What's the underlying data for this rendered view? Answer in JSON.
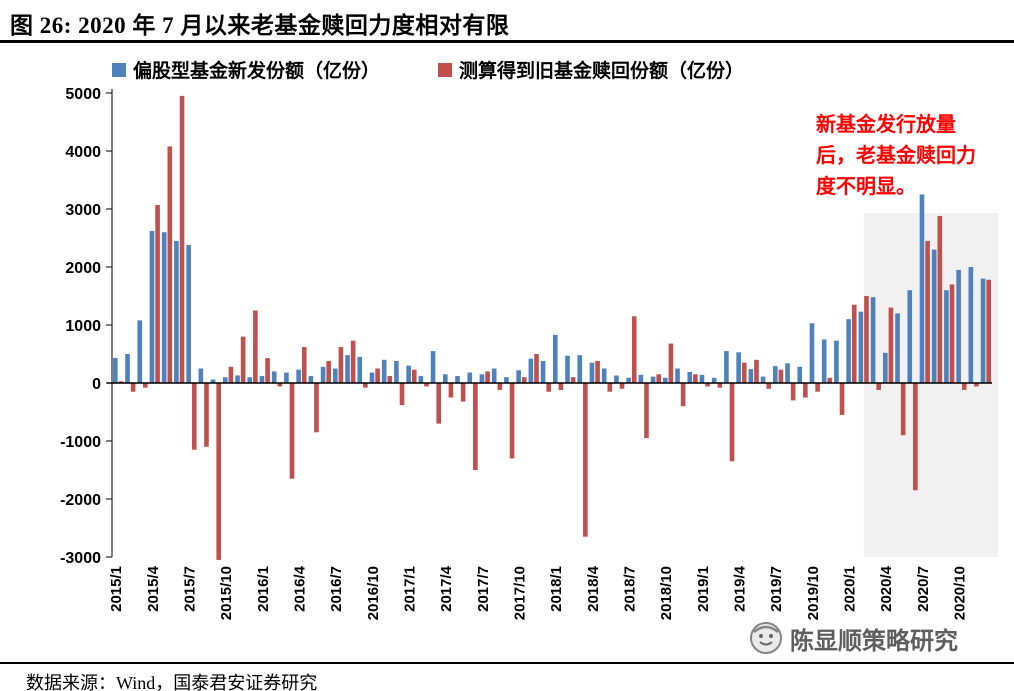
{
  "header": {
    "title": "图 26:  2020 年 7 月以来老基金赎回力度相对有限"
  },
  "legend": [
    {
      "label": "偏股型基金新发份额（亿份）",
      "color": "#4F81BD"
    },
    {
      "label": "测算得到旧基金赎回份额（亿份）",
      "color": "#C0504D"
    }
  ],
  "annotation": {
    "text": "新基金发行放量后，老基金赎回力度不明显。",
    "color": "#FF0000"
  },
  "watermark": {
    "text": "陈显顺策略研究"
  },
  "source": {
    "text": "数据来源：Wind，国泰君安证券研究"
  },
  "chart_data": {
    "type": "bar",
    "title": "图 26: 2020 年 7 月以来老基金赎回力度相对有限",
    "xlabel": "",
    "ylabel": "",
    "ylim": [
      -3000,
      5000
    ],
    "ytick_step": 1000,
    "grid": false,
    "legend_position": "top",
    "highlight_region": {
      "from": "2020/3",
      "to": "2020/12"
    },
    "x": [
      "2015/1",
      "2015/2",
      "2015/3",
      "2015/4",
      "2015/5",
      "2015/6",
      "2015/7",
      "2015/8",
      "2015/9",
      "2015/10",
      "2015/11",
      "2015/12",
      "2016/1",
      "2016/2",
      "2016/3",
      "2016/4",
      "2016/5",
      "2016/6",
      "2016/7",
      "2016/8",
      "2016/9",
      "2016/10",
      "2016/11",
      "2016/12",
      "2017/1",
      "2017/2",
      "2017/3",
      "2017/4",
      "2017/5",
      "2017/6",
      "2017/7",
      "2017/8",
      "2017/9",
      "2017/10",
      "2017/11",
      "2017/12",
      "2018/1",
      "2018/2",
      "2018/3",
      "2018/4",
      "2018/5",
      "2018/6",
      "2018/7",
      "2018/8",
      "2018/9",
      "2018/10",
      "2018/11",
      "2018/12",
      "2019/1",
      "2019/2",
      "2019/3",
      "2019/4",
      "2019/5",
      "2019/6",
      "2019/7",
      "2019/8",
      "2019/9",
      "2019/10",
      "2019/11",
      "2019/12",
      "2020/1",
      "2020/2",
      "2020/3",
      "2020/4",
      "2020/5",
      "2020/6",
      "2020/7",
      "2020/8",
      "2020/9",
      "2020/10",
      "2020/11",
      "2020/12"
    ],
    "tick_every": 3,
    "series": [
      {
        "name": "偏股型基金新发份额（亿份）",
        "color": "#4F81BD",
        "values": [
          430,
          500,
          1080,
          2620,
          2600,
          2450,
          2380,
          250,
          60,
          100,
          130,
          100,
          120,
          200,
          180,
          230,
          120,
          280,
          250,
          480,
          450,
          180,
          400,
          380,
          300,
          120,
          550,
          150,
          120,
          180,
          150,
          250,
          100,
          220,
          420,
          380,
          830,
          470,
          480,
          350,
          250,
          130,
          90,
          140,
          110,
          90,
          250,
          190,
          140,
          90,
          550,
          530,
          240,
          110,
          290,
          340,
          280,
          1030,
          750,
          730,
          1100,
          1230,
          1480,
          520,
          1200,
          1600,
          3250,
          2300,
          1600,
          1950,
          2000,
          1800
        ]
      },
      {
        "name": "测算得到旧基金赎回份额（亿份）",
        "color": "#C0504D",
        "values": [
          30,
          -150,
          -80,
          3070,
          4080,
          4950,
          -1150,
          -1100,
          -3050,
          280,
          800,
          1250,
          430,
          -60,
          -1650,
          620,
          -850,
          380,
          620,
          730,
          -80,
          250,
          120,
          -380,
          230,
          -60,
          -700,
          -250,
          -320,
          -1500,
          200,
          -120,
          -1300,
          100,
          500,
          -150,
          -120,
          100,
          -2650,
          380,
          -150,
          -100,
          1150,
          -950,
          150,
          680,
          -400,
          150,
          -60,
          -80,
          -1350,
          350,
          400,
          -100,
          230,
          -300,
          -250,
          -150,
          90,
          -550,
          1350,
          1500,
          -120,
          1300,
          -900,
          -1850,
          2450,
          2880,
          1700,
          -120,
          -60,
          1780
        ]
      }
    ]
  }
}
